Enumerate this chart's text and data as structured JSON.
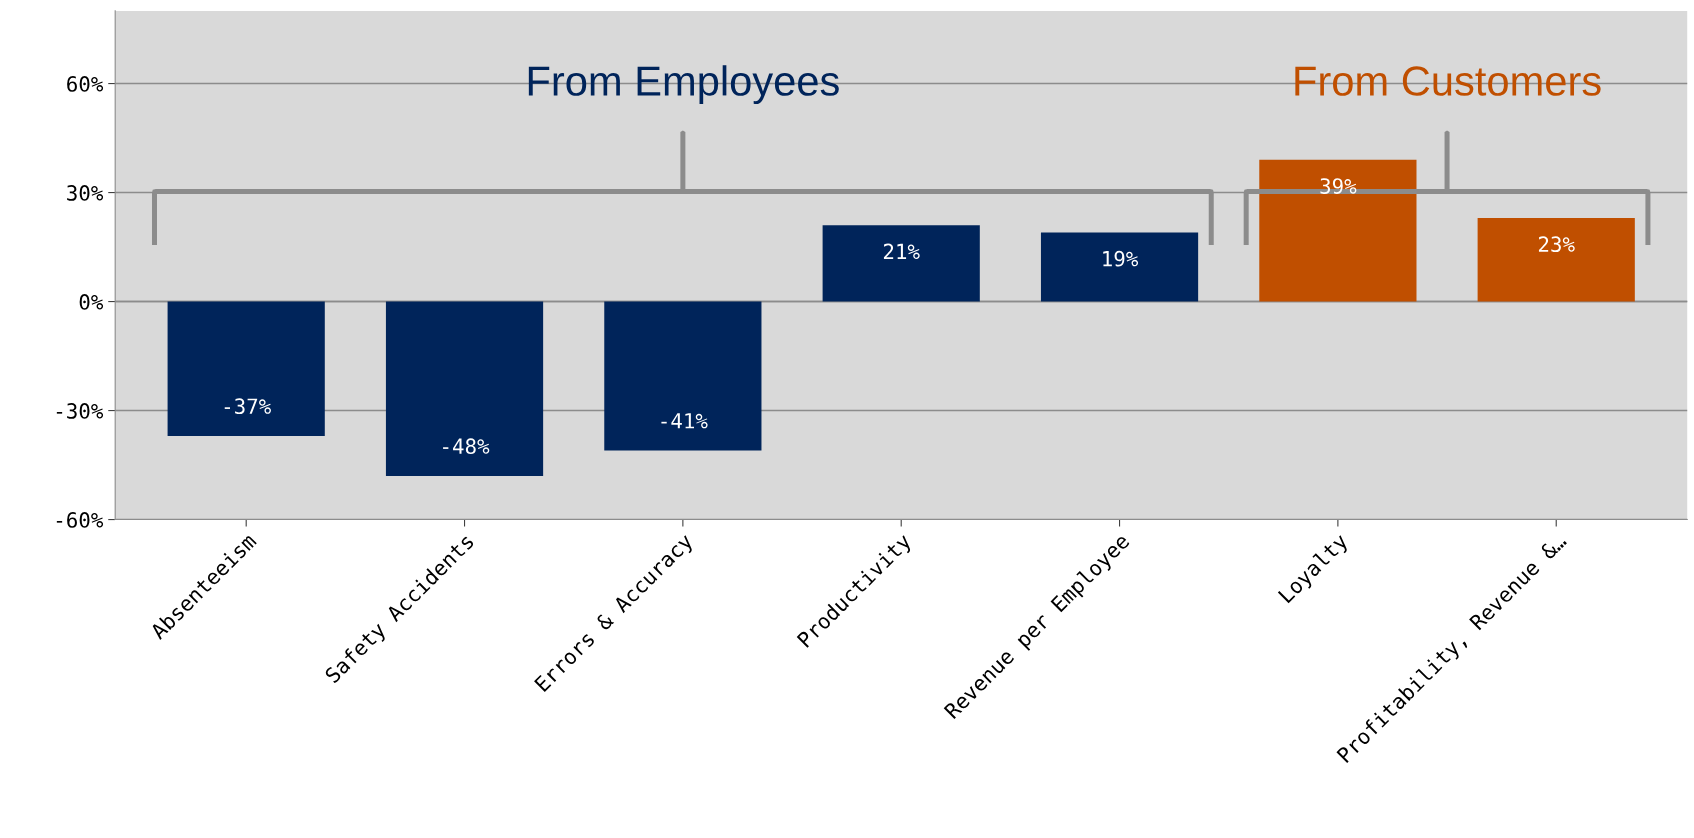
{
  "chart_data": {
    "type": "bar",
    "categories": [
      "Absenteeism",
      "Safety Accidents",
      "Errors & Accuracy",
      "Productivity",
      "Revenue per Employee",
      "Loyalty",
      "Profitability, Revenue &…"
    ],
    "values": [
      -37,
      -48,
      -41,
      21,
      19,
      39,
      23
    ],
    "colors": [
      "#00245a",
      "#00245a",
      "#00245a",
      "#00245a",
      "#00245a",
      "#c04f00",
      "#c04f00"
    ],
    "value_labels": [
      "-37%",
      "-48%",
      "-41%",
      "21%",
      "19%",
      "39%",
      "23%"
    ],
    "ylim": [
      -60,
      80
    ],
    "yticks": [
      {
        "value": -60,
        "label": "-60%"
      },
      {
        "value": -30,
        "label": "-30%"
      },
      {
        "value": 0,
        "label": "0%"
      },
      {
        "value": 30,
        "label": "30%"
      },
      {
        "value": 60,
        "label": "60%"
      }
    ],
    "grid": "y",
    "annotations": [
      "From Employees",
      "From Customers"
    ]
  }
}
